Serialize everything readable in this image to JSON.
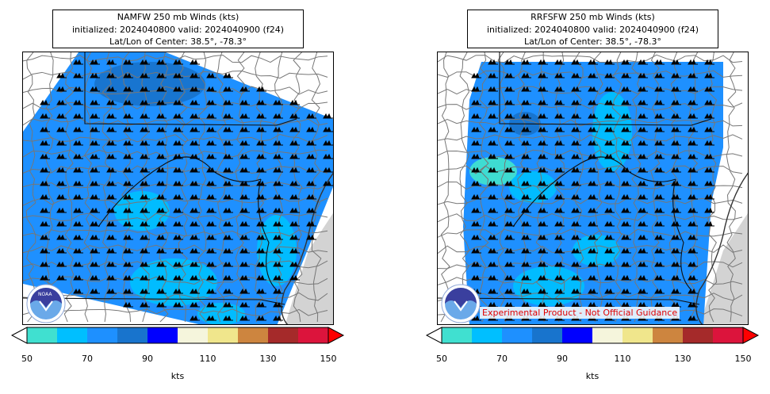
{
  "panels": [
    {
      "title_line1": "NAMFW 250 mb Winds (kts)",
      "title_line2": "initialized: 2024040800 valid: 2024040900 (f24)",
      "title_line3": "Lat/Lon of Center: 38.5°, -78.3°",
      "disclaimer": ""
    },
    {
      "title_line1": "RRFSFW 250 mb Winds (kts)",
      "title_line2": "initialized: 2024040800 valid: 2024040900 (f24)",
      "title_line3": "Lat/Lon of Center: 38.5°, -78.3°",
      "disclaimer": "Experimental Product - Not Official Guidance"
    }
  ],
  "colorbar": {
    "label": "kts",
    "ticks": [
      "50",
      "70",
      "90",
      "110",
      "130",
      "150"
    ],
    "colors": [
      "#40e0d0",
      "#00bfff",
      "#1e90ff",
      "#1874cd",
      "#0000ff",
      "#f5f5dc",
      "#f0e68c",
      "#cd853f",
      "#a52a2a",
      "#dc143c"
    ],
    "extend_max_color": "#ff0000",
    "extend_min_color": "#ffffff"
  },
  "logo": {
    "text": "NOAA",
    "color": "#3a5fcd"
  },
  "ocean_color": "#d3d3d3"
}
